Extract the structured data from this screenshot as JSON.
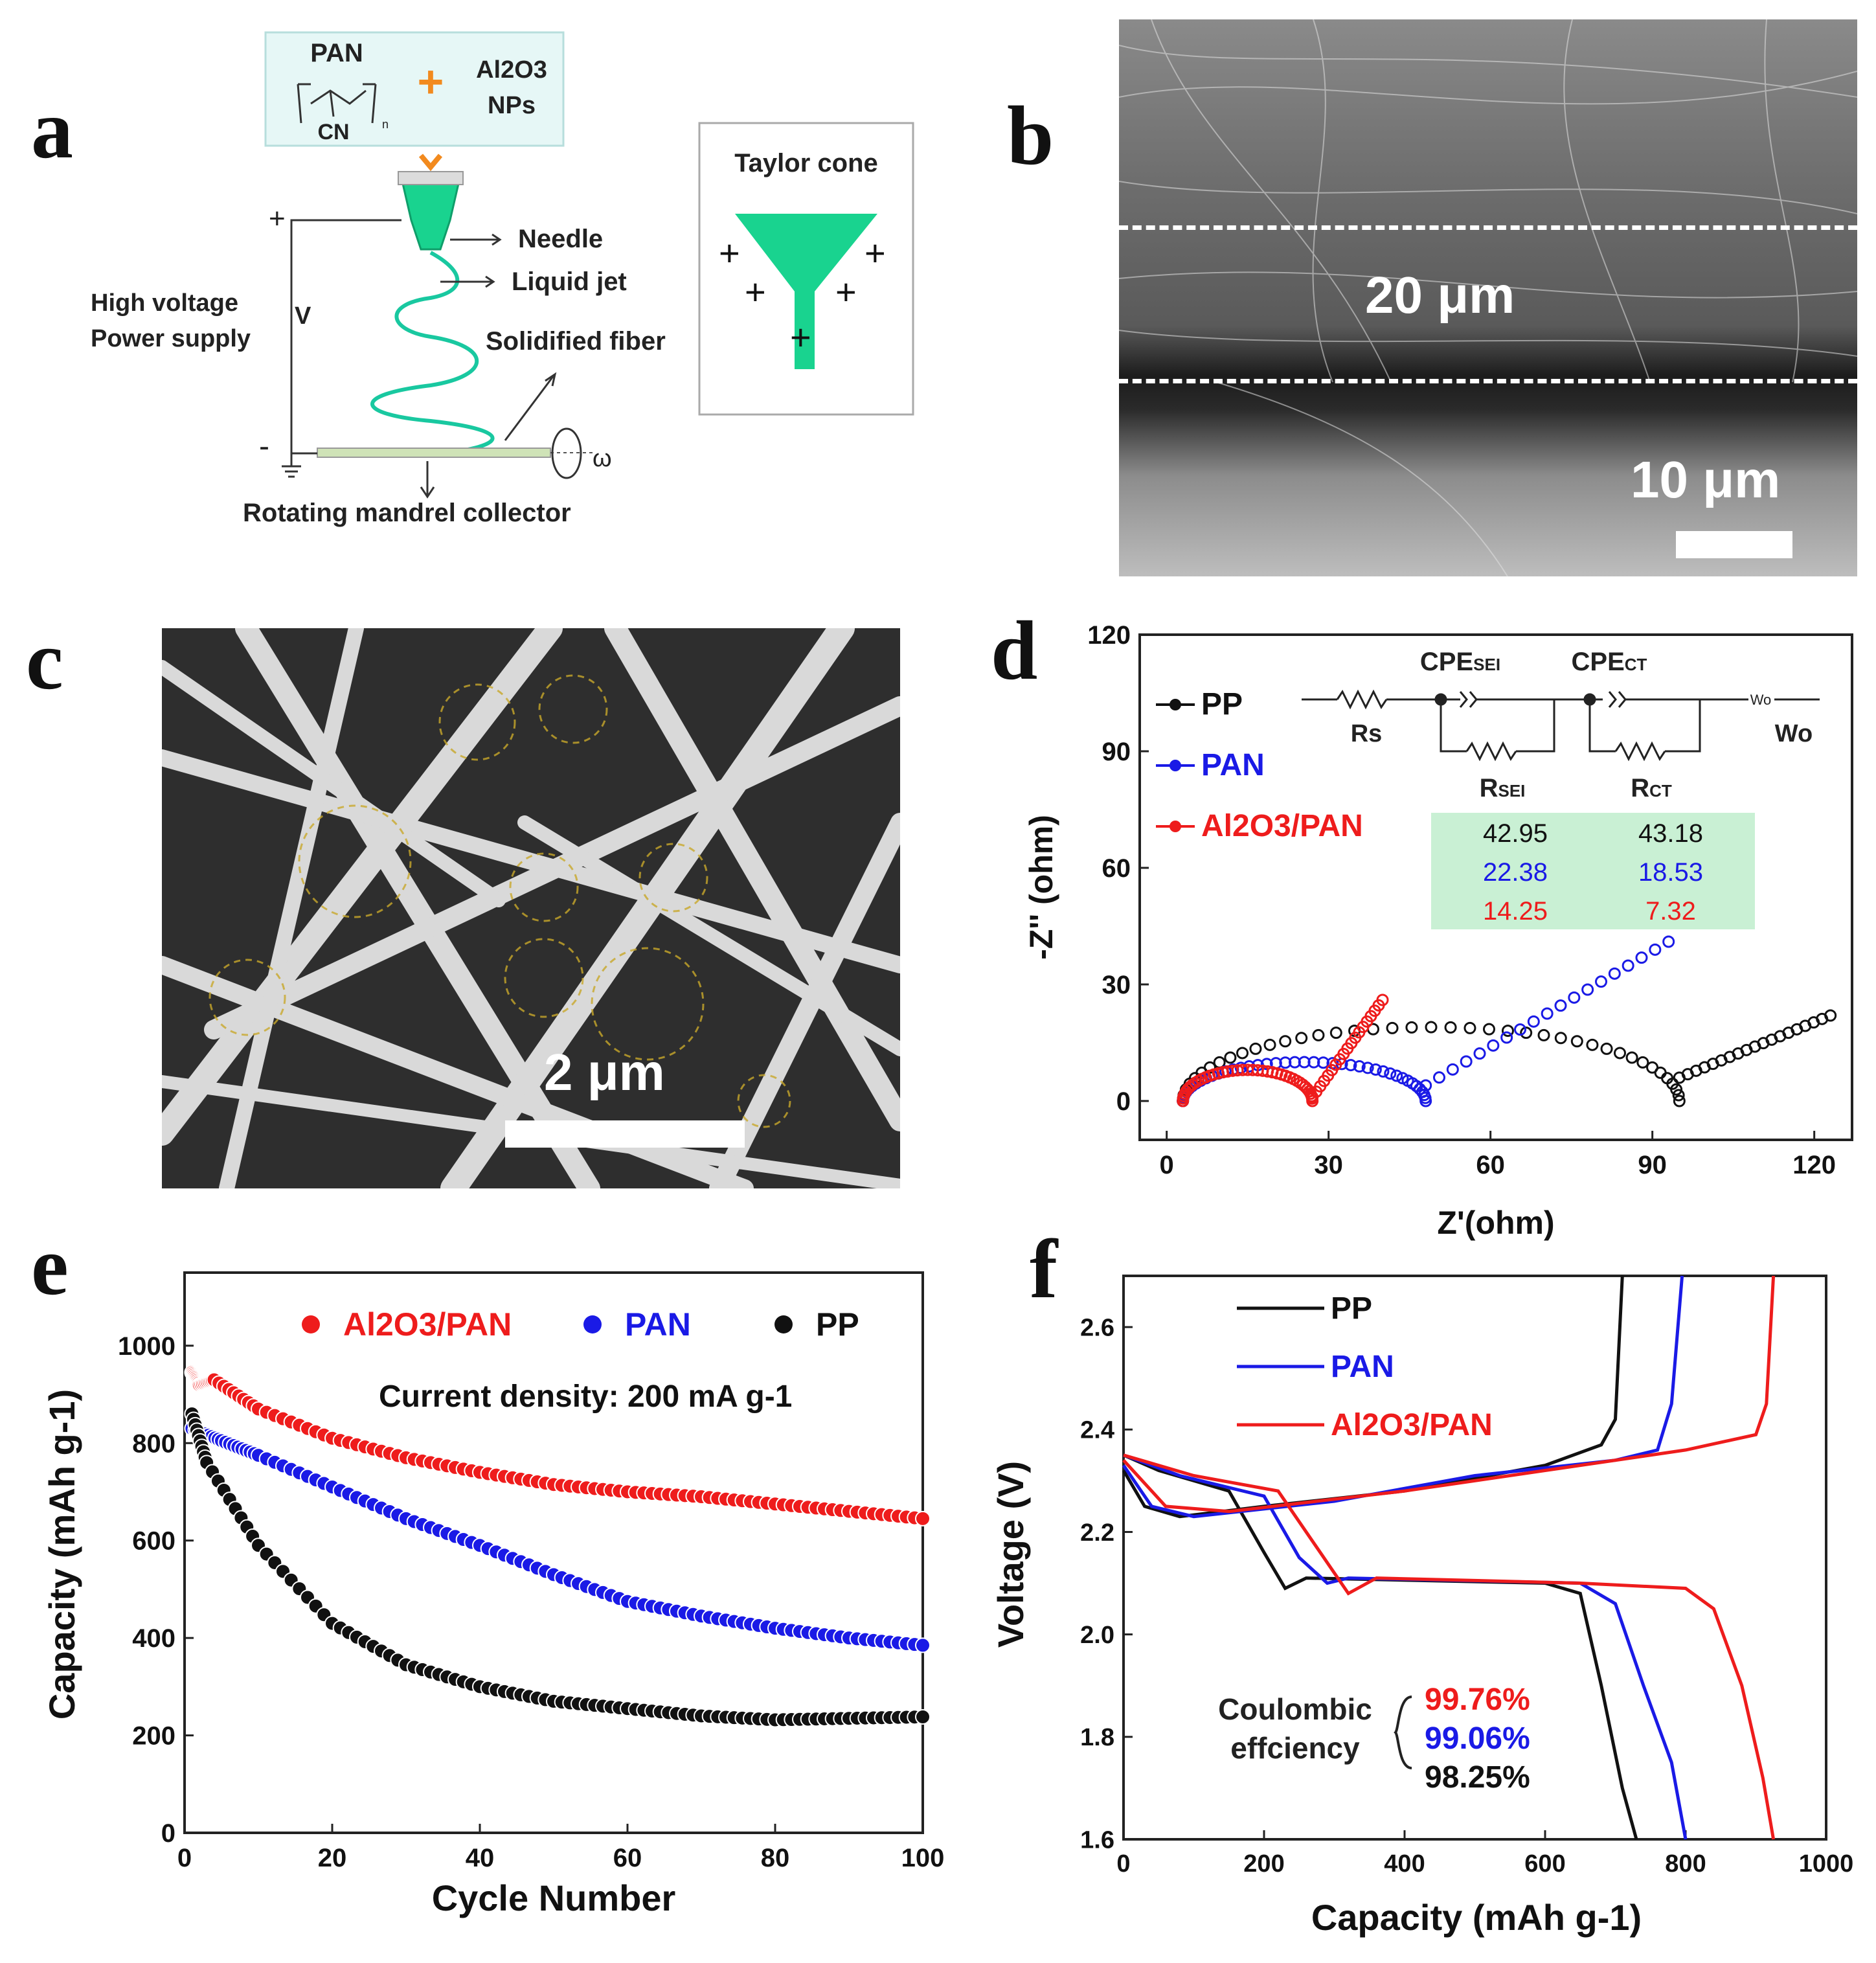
{
  "panel_labels": {
    "a": "a",
    "b": "b",
    "c": "c",
    "d": "d",
    "e": "e",
    "f": "f"
  },
  "schematic": {
    "polymer": "PAN",
    "polymer_group": "CN",
    "polymer_repeat": "n",
    "additive_line1": "Al2O3",
    "additive_line2": "NPs",
    "plus_sign": "+",
    "needle": "Needle",
    "liquid_jet": "Liquid jet",
    "solidified_fiber": "Solidified fiber",
    "power_line1": "High voltage",
    "power_line2": "Power supply",
    "voltage_symbol": "V",
    "positive": "+",
    "negative": "-",
    "collector": "Rotating mandrel collector",
    "omega": "ω",
    "taylor_cone": "Taylor cone"
  },
  "sem_b": {
    "thickness": "20 μm",
    "scale": "10 μm"
  },
  "sem_c": {
    "scale": "2 μm"
  },
  "colors": {
    "pp": "#111111",
    "pan": "#1a1ae6",
    "al": "#ee1c1c",
    "table_bg": "#c9f0d4",
    "cone": "#19d38f",
    "accent": "#f28a1e"
  },
  "chart_data": [
    {
      "id": "d",
      "type": "scatter",
      "xlabel": "Z'(ohm)",
      "ylabel": "-Z'' (ohm)",
      "xlim": [
        -5,
        127
      ],
      "ylim": [
        -10,
        120
      ],
      "xticks": [
        0,
        30,
        60,
        90,
        120
      ],
      "yticks": [
        0,
        30,
        60,
        90,
        120
      ],
      "legend": [
        "PP",
        "PAN",
        "Al2O3/PAN"
      ],
      "circuit": {
        "rs": "Rs",
        "cpe_sei": "CPE",
        "cpe_sei_sub": "SEI",
        "r_sei": "R",
        "r_sei_sub": "SEI",
        "cpe_ct": "CPE",
        "cpe_ct_sub": "CT",
        "r_ct": "R",
        "r_ct_sub": "CT",
        "wo": "Wo",
        "wo_symbol": "Wo"
      },
      "table": {
        "r_sei": [
          "42.95",
          "22.38",
          "14.25"
        ],
        "r_ct": [
          "43.18",
          "18.53",
          "7.32"
        ]
      },
      "series": [
        {
          "name": "PP",
          "color_key": "pp",
          "semicircle": {
            "start": 3,
            "end": 95,
            "peak": 19
          },
          "tail": [
            [
              95,
              6
            ],
            [
              123,
              22
            ]
          ]
        },
        {
          "name": "PAN",
          "color_key": "pan",
          "semicircle": {
            "start": 3,
            "end": 48,
            "peak": 10
          },
          "tail": [
            [
              48,
              4
            ],
            [
              93,
              41
            ]
          ]
        },
        {
          "name": "Al2O3/PAN",
          "color_key": "al",
          "semicircle": {
            "start": 3,
            "end": 27,
            "peak": 8
          },
          "tail": [
            [
              27,
              1
            ],
            [
              40,
              26
            ]
          ]
        }
      ]
    },
    {
      "id": "e",
      "type": "scatter",
      "xlabel": "Cycle Number",
      "ylabel": "Capacity (mAh g-1)",
      "xlim": [
        0,
        100
      ],
      "ylim": [
        0,
        1150
      ],
      "xticks": [
        0,
        20,
        40,
        60,
        80,
        100
      ],
      "yticks": [
        0,
        200,
        400,
        600,
        800,
        1000
      ],
      "annotation": "Current density: 200 mA g-1",
      "legend": [
        "Al2O3/PAN",
        "PAN",
        "PP"
      ],
      "series": [
        {
          "name": "Al2O3/PAN",
          "color_key": "al",
          "points": [
            [
              1,
              945
            ],
            [
              2,
              920
            ],
            [
              4,
              930
            ],
            [
              10,
              870
            ],
            [
              20,
              810
            ],
            [
              30,
              770
            ],
            [
              40,
              740
            ],
            [
              50,
              715
            ],
            [
              60,
              700
            ],
            [
              70,
              690
            ],
            [
              80,
              675
            ],
            [
              90,
              660
            ],
            [
              100,
              645
            ]
          ]
        },
        {
          "name": "PAN",
          "color_key": "pan",
          "points": [
            [
              1,
              830
            ],
            [
              5,
              805
            ],
            [
              10,
              775
            ],
            [
              20,
              710
            ],
            [
              30,
              645
            ],
            [
              40,
              590
            ],
            [
              50,
              530
            ],
            [
              60,
              475
            ],
            [
              70,
              445
            ],
            [
              80,
              420
            ],
            [
              90,
              400
            ],
            [
              100,
              385
            ]
          ]
        },
        {
          "name": "PP",
          "color_key": "pp",
          "points": [
            [
              1,
              860
            ],
            [
              3,
              760
            ],
            [
              10,
              590
            ],
            [
              20,
              430
            ],
            [
              30,
              345
            ],
            [
              40,
              300
            ],
            [
              50,
              270
            ],
            [
              60,
              255
            ],
            [
              70,
              240
            ],
            [
              80,
              232
            ],
            [
              90,
              235
            ],
            [
              100,
              238
            ]
          ]
        }
      ]
    },
    {
      "id": "f",
      "type": "line",
      "xlabel": "Capacity (mAh g-1)",
      "ylabel": "Voltage (V)",
      "xlim": [
        0,
        1000
      ],
      "ylim": [
        1.6,
        2.7
      ],
      "xticks": [
        0,
        200,
        400,
        600,
        800,
        1000
      ],
      "yticks": [
        1.6,
        1.8,
        2.0,
        2.2,
        2.4,
        2.6
      ],
      "coulombic": {
        "label1": "Coulombic",
        "label2": "effciency",
        "values": [
          "99.76%",
          "99.06%",
          "98.25%"
        ]
      },
      "legend": [
        "PP",
        "PAN",
        "Al2O3/PAN"
      ],
      "series": [
        {
          "name": "PP",
          "color_key": "pp",
          "charge": [
            [
              0,
              2.32
            ],
            [
              30,
              2.25
            ],
            [
              80,
              2.23
            ],
            [
              200,
              2.25
            ],
            [
              400,
              2.28
            ],
            [
              600,
              2.33
            ],
            [
              680,
              2.37
            ],
            [
              700,
              2.42
            ],
            [
              710,
              2.7
            ]
          ],
          "discharge": [
            [
              0,
              2.35
            ],
            [
              50,
              2.32
            ],
            [
              150,
              2.28
            ],
            [
              200,
              2.16
            ],
            [
              230,
              2.09
            ],
            [
              260,
              2.11
            ],
            [
              600,
              2.1
            ],
            [
              650,
              2.08
            ],
            [
              680,
              1.9
            ],
            [
              710,
              1.7
            ],
            [
              730,
              1.6
            ]
          ]
        },
        {
          "name": "PAN",
          "color_key": "pan",
          "charge": [
            [
              0,
              2.33
            ],
            [
              40,
              2.25
            ],
            [
              100,
              2.23
            ],
            [
              300,
              2.26
            ],
            [
              500,
              2.31
            ],
            [
              700,
              2.34
            ],
            [
              760,
              2.36
            ],
            [
              780,
              2.45
            ],
            [
              795,
              2.7
            ]
          ],
          "discharge": [
            [
              0,
              2.35
            ],
            [
              80,
              2.31
            ],
            [
              200,
              2.27
            ],
            [
              250,
              2.15
            ],
            [
              290,
              2.1
            ],
            [
              320,
              2.11
            ],
            [
              650,
              2.1
            ],
            [
              700,
              2.06
            ],
            [
              740,
              1.9
            ],
            [
              780,
              1.75
            ],
            [
              800,
              1.6
            ]
          ]
        },
        {
          "name": "Al2O3/PAN",
          "color_key": "al",
          "charge": [
            [
              0,
              2.34
            ],
            [
              60,
              2.25
            ],
            [
              150,
              2.24
            ],
            [
              400,
              2.28
            ],
            [
              600,
              2.32
            ],
            [
              800,
              2.36
            ],
            [
              900,
              2.39
            ],
            [
              915,
              2.45
            ],
            [
              925,
              2.7
            ]
          ],
          "discharge": [
            [
              0,
              2.35
            ],
            [
              100,
              2.31
            ],
            [
              220,
              2.28
            ],
            [
              280,
              2.16
            ],
            [
              320,
              2.08
            ],
            [
              360,
              2.11
            ],
            [
              650,
              2.1
            ],
            [
              800,
              2.09
            ],
            [
              840,
              2.05
            ],
            [
              880,
              1.9
            ],
            [
              910,
              1.72
            ],
            [
              925,
              1.6
            ]
          ]
        }
      ]
    }
  ]
}
